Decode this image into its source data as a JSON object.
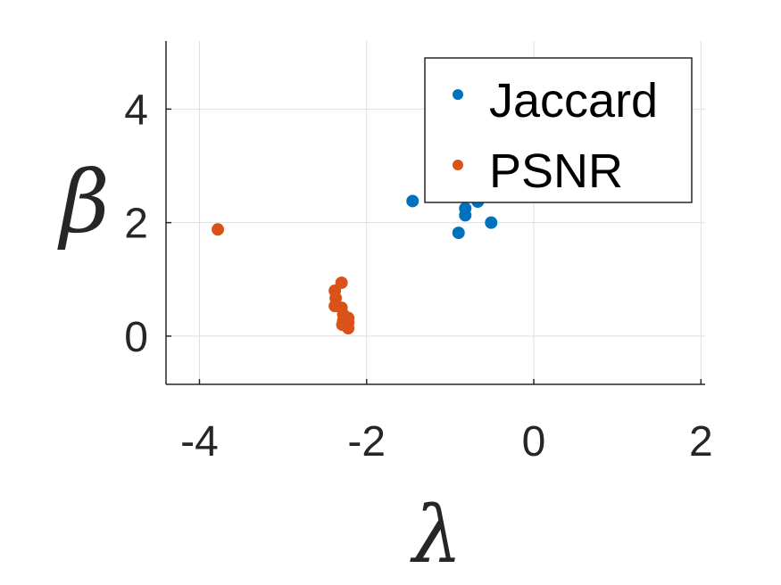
{
  "chart_data": {
    "type": "scatter",
    "xlabel": "λ",
    "ylabel": "β",
    "xlim": [
      -4.4,
      2.05
    ],
    "ylim": [
      -0.85,
      5.2
    ],
    "xticks": [
      -4,
      -2,
      0,
      2
    ],
    "yticks": [
      0,
      2,
      4
    ],
    "xtick_labels": [
      "-4",
      "-2",
      "0",
      "2"
    ],
    "ytick_labels": [
      "0",
      "2",
      "4"
    ],
    "grid": true,
    "legend_position": "top-right",
    "series": [
      {
        "name": "Jaccard",
        "color": "#0072BD",
        "points": [
          {
            "x": -1.45,
            "y": 2.38
          },
          {
            "x": -0.9,
            "y": 1.82
          },
          {
            "x": -0.82,
            "y": 2.25
          },
          {
            "x": -0.82,
            "y": 2.13
          },
          {
            "x": -0.67,
            "y": 2.37
          },
          {
            "x": -0.51,
            "y": 2.0
          }
        ]
      },
      {
        "name": "PSNR",
        "color": "#D95319",
        "points": [
          {
            "x": -3.78,
            "y": 1.88
          },
          {
            "x": -2.3,
            "y": 0.94
          },
          {
            "x": -2.38,
            "y": 0.8
          },
          {
            "x": -2.37,
            "y": 0.67
          },
          {
            "x": -2.38,
            "y": 0.53
          },
          {
            "x": -2.3,
            "y": 0.5
          },
          {
            "x": -2.28,
            "y": 0.38
          },
          {
            "x": -2.22,
            "y": 0.32
          },
          {
            "x": -2.28,
            "y": 0.27
          },
          {
            "x": -2.22,
            "y": 0.24
          },
          {
            "x": -2.29,
            "y": 0.2
          },
          {
            "x": -2.22,
            "y": 0.14
          }
        ]
      }
    ]
  }
}
